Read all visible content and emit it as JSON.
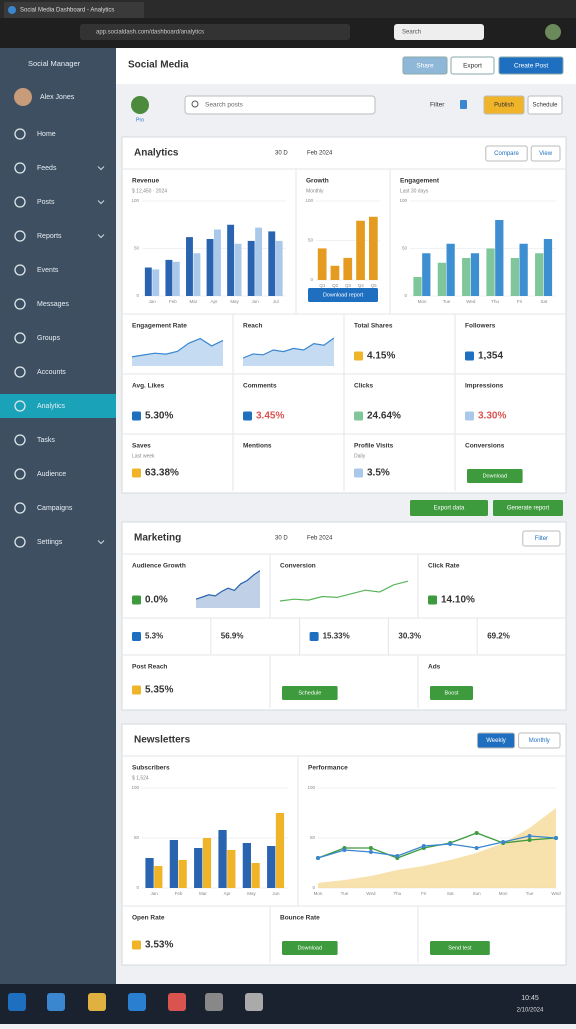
{
  "browser": {
    "tab": "Social Media Dashboard - Analytics",
    "url": "app.socialdash.com/dashboard/analytics",
    "search": "Search"
  },
  "sidebar": {
    "brand": "Social Manager",
    "user": "Alex Jones",
    "items": [
      "Home",
      "Feeds",
      "Posts",
      "Reports",
      "Events",
      "Messages",
      "Groups",
      "Accounts",
      "Analytics",
      "Tasks",
      "Audience",
      "Campaigns",
      "Settings"
    ],
    "active": 8,
    "expandable": [
      1,
      2,
      3,
      12
    ]
  },
  "header": {
    "title": "Social Media",
    "buttons": [
      "Share",
      "Export",
      "Create Post"
    ]
  },
  "toolbar": {
    "avatar_label": "Pro",
    "search": "Search posts",
    "filter": "Filter",
    "buttons": [
      "Publish",
      "Schedule"
    ]
  },
  "sections": [
    {
      "title": "Analytics",
      "meta": [
        "30 D",
        "Feb 2024"
      ],
      "buttons": [
        "Compare",
        "View"
      ],
      "rows": [
        [
          {
            "title": "Revenue",
            "subtitle": "$ 12,450 · 2024",
            "chart": {
              "type": "bar",
              "categories": [
                "Jan",
                "Feb",
                "Mar",
                "Apr",
                "May",
                "Jun",
                "Jul"
              ],
              "ylim": [
                0,
                100
              ],
              "yticks": [
                0,
                50,
                100
              ],
              "series": [
                {
                  "color": "#2a64b0",
                  "values": [
                    30,
                    38,
                    62,
                    60,
                    75,
                    58,
                    68
                  ]
                },
                {
                  "color": "#a9c8ea",
                  "values": [
                    28,
                    36,
                    45,
                    70,
                    55,
                    72,
                    58
                  ]
                }
              ]
            }
          },
          {
            "title": "Growth",
            "subtitle": "Monthly",
            "chart": {
              "type": "bar",
              "categories": [
                "Q1",
                "Q2",
                "Q3",
                "Q4",
                "Q5"
              ],
              "ylim": [
                0,
                100
              ],
              "yticks": [
                0,
                50,
                100
              ],
              "series": [
                {
                  "color": "#e59b1f",
                  "values": [
                    40,
                    18,
                    28,
                    75,
                    80
                  ]
                }
              ]
            },
            "button": "Download report",
            "button_color": "#1f6fc0"
          },
          {
            "title": "Engagement",
            "subtitle": "Last 30 days",
            "chart": {
              "type": "bar",
              "categories": [
                "Mon",
                "Tue",
                "Wed",
                "Thu",
                "Fri",
                "Sat"
              ],
              "ylim": [
                0,
                100
              ],
              "yticks": [
                0,
                50,
                100
              ],
              "series": [
                {
                  "color": "#7fc79a",
                  "values": [
                    20,
                    35,
                    40,
                    50,
                    40,
                    45
                  ]
                },
                {
                  "color": "#3d8fd1",
                  "values": [
                    45,
                    55,
                    45,
                    80,
                    55,
                    60
                  ]
                }
              ]
            }
          }
        ],
        [
          {
            "title": "Engagement Rate",
            "spark": {
              "type": "area",
              "color": "#3a87d0",
              "ylim": [
                0,
                35
              ],
              "values": [
                10,
                12,
                14,
                13,
                16,
                25,
                30,
                22,
                28
              ]
            }
          },
          {
            "title": "Reach",
            "spark": {
              "type": "area",
              "color": "#3a87d0",
              "ylim": [
                0,
                40
              ],
              "values": [
                10,
                15,
                14,
                20,
                18,
                22,
                20,
                28,
                26,
                35
              ]
            }
          },
          {
            "title": "Total Shares",
            "value": "4.15%",
            "icon_color": "#f0b429"
          },
          {
            "title": "Followers",
            "value": "1,354",
            "icon_color": "#1f6fc0"
          }
        ],
        [
          {
            "title": "Avg. Likes",
            "value": "5.30%",
            "icon_color": "#1f6fc0"
          },
          {
            "title": "Comments",
            "value": "3.45%",
            "icon_color": "#1f6fc0",
            "value_color": "#d9534f"
          },
          {
            "title": "Clicks",
            "value": "24.64%",
            "icon_color": "#7fc79a"
          },
          {
            "title": "Impressions",
            "value": "3.30%",
            "icon_color": "#a9c8ea",
            "value_color": "#d9534f"
          }
        ],
        [
          {
            "title": "Saves",
            "subtitle": "Last week",
            "value": "63.38%",
            "icon_color": "#f0b429"
          },
          {
            "title": "Mentions"
          },
          {
            "title": "Profile Visits",
            "subtitle": "Daily",
            "value": "3.5%",
            "icon_color": "#a9c8ea"
          },
          {
            "title": "Conversions",
            "button": "Download",
            "button_color": "#3d9a3d"
          }
        ]
      ]
    },
    {
      "title": "Marketing",
      "meta": [
        "30 D",
        "Feb 2024"
      ],
      "buttons": [
        "Filter"
      ],
      "rows": [
        [
          {
            "title": "Audience Growth",
            "value": "0.0%",
            "icon_color": "#3d9a3d",
            "spark": {
              "type": "area",
              "color": "#2a64b0",
              "ylim": [
                0,
                40
              ],
              "values": [
                8,
                10,
                12,
                11,
                15,
                18,
                16,
                22,
                25,
                30,
                34
              ]
            }
          },
          {
            "title": "Conversion",
            "spark": {
              "type": "line",
              "color": "#5ab55a",
              "ylim": [
                0,
                40
              ],
              "values": [
                10,
                12,
                11,
                15,
                14,
                18,
                22,
                20,
                28,
                32
              ]
            }
          },
          {
            "title": "Click Rate",
            "value": "14.10%",
            "icon_color": "#3d9a3d"
          }
        ],
        [
          {
            "value": "5.3%",
            "icon_color": "#1f6fc0"
          },
          {
            "value": "56.9%"
          },
          {
            "value": "15.33%",
            "icon_color": "#1f6fc0"
          },
          {
            "value": "30.3%"
          },
          {
            "value": "69.2%"
          }
        ],
        [
          {
            "title": "Post Reach",
            "value": "5.35%",
            "icon_color": "#f0b429"
          },
          {
            "button": "Schedule",
            "button_color": "#3d9a3d"
          },
          {
            "title": "Ads",
            "button": "Boost",
            "button_color": "#3d9a3d"
          }
        ]
      ]
    },
    {
      "title": "Newsletters",
      "meta": [],
      "buttons": [
        "Weekly",
        "Monthly"
      ],
      "primary_button": 0,
      "rows": [
        [
          {
            "title": "Subscribers",
            "subtitle": "$ 1,524",
            "chart": {
              "type": "bar",
              "categories": [
                "Jan",
                "Feb",
                "Mar",
                "Apr",
                "May",
                "Jun"
              ],
              "ylim": [
                0,
                100
              ],
              "yticks": [
                0,
                50,
                100
              ],
              "series": [
                {
                  "color": "#2a64b0",
                  "values": [
                    30,
                    48,
                    40,
                    58,
                    45,
                    42
                  ]
                },
                {
                  "color": "#f0b429",
                  "values": [
                    22,
                    28,
                    50,
                    38,
                    25,
                    75
                  ]
                }
              ]
            }
          },
          {
            "title": "Performance",
            "chart": {
              "type": "line",
              "categories": [
                "Mon",
                "Tue",
                "Wed",
                "Thu",
                "Fri",
                "Sat",
                "Sun",
                "Mon",
                "Tue",
                "Wed"
              ],
              "ylim": [
                0,
                100
              ],
              "yticks": [
                0,
                50,
                100
              ],
              "series": [
                {
                  "color": "#f3d58a",
                  "area": true,
                  "values": [
                    5,
                    8,
                    12,
                    18,
                    22,
                    28,
                    35,
                    45,
                    60,
                    80
                  ]
                },
                {
                  "color": "#3d9a3d",
                  "values": [
                    30,
                    40,
                    40,
                    30,
                    40,
                    45,
                    55,
                    45,
                    48,
                    50
                  ]
                },
                {
                  "color": "#3a87d0",
                  "values": [
                    30,
                    38,
                    36,
                    32,
                    42,
                    44,
                    40,
                    46,
                    52,
                    50
                  ]
                }
              ]
            }
          }
        ],
        [
          {
            "title": "Open Rate",
            "value": "3.53%",
            "icon_color": "#f0b429"
          },
          {
            "title": "Bounce Rate",
            "button": "Download",
            "button_color": "#3d9a3d"
          },
          {
            "button": "Send test",
            "button_color": "#3d9a3d"
          }
        ]
      ]
    }
  ],
  "actions": [
    "Export data",
    "Generate report"
  ],
  "taskbar": {
    "time": "10:45",
    "date": "2/10/2024"
  }
}
